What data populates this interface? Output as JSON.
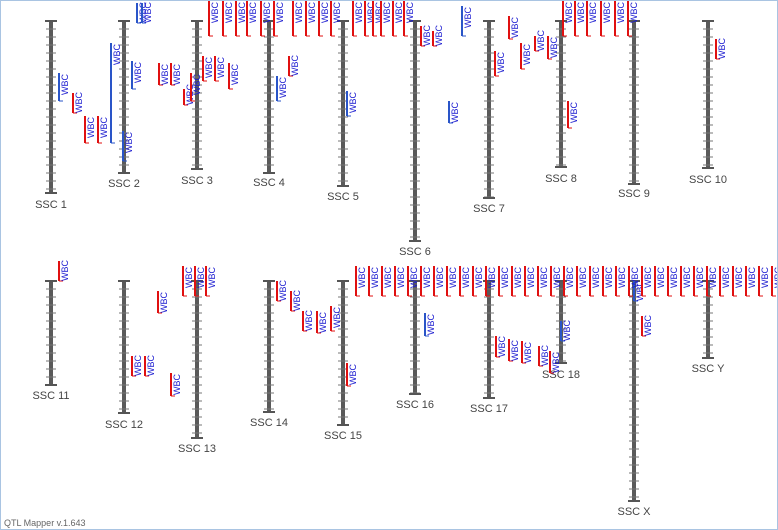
{
  "footer": "QTL Mapper v.1.643",
  "chromosomes": [
    {
      "label": "SSC 1",
      "qtls": [
        "WBC",
        "WBC",
        "WBC",
        "WBC"
      ]
    },
    {
      "label": "SSC 2",
      "qtls": [
        "WBC",
        "WBC",
        "WBC",
        "WBC",
        "WBC"
      ]
    },
    {
      "label": "SSC 3",
      "qtls": [
        "WBC",
        "WBC",
        "WBC",
        "WBC",
        "WBC",
        "WBC",
        "WBC",
        "WBC",
        "WBC",
        "WBC"
      ]
    },
    {
      "label": "SSC 4",
      "qtls": [
        "WBC",
        "WBC",
        "WBC",
        "WBC",
        "WBC",
        "WBC"
      ]
    },
    {
      "label": "SSC 5",
      "qtls": [
        "WBC",
        "WBC",
        "WBC",
        "WBC",
        "WBC",
        "WBC",
        "WBC",
        "WBC",
        "WBC",
        "WBC"
      ]
    },
    {
      "label": "SSC 6",
      "qtls": [
        "WBC",
        "WBC",
        "WBC",
        "WBC"
      ]
    },
    {
      "label": "SSC 7",
      "qtls": [
        "WBC",
        "WBC",
        "WBC",
        "WBC",
        "WBC",
        "WBC"
      ]
    },
    {
      "label": "SSC 8",
      "qtls": [
        "WBC",
        "WBC",
        "WBC",
        "WBC",
        "WBC",
        "WBC"
      ]
    },
    {
      "label": "SSC 9",
      "qtls": []
    },
    {
      "label": "SSC 10",
      "qtls": [
        "WBC"
      ]
    },
    {
      "label": "SSC 11",
      "qtls": [
        "WBC"
      ]
    },
    {
      "label": "SSC 12",
      "qtls": [
        "WBC",
        "WBC",
        "WBC",
        "WBC"
      ]
    },
    {
      "label": "SSC 13",
      "qtls": [
        "WBC",
        "WBC",
        "WBC"
      ]
    },
    {
      "label": "SSC 14",
      "qtls": [
        "WBC",
        "WBC",
        "WBC",
        "WBC",
        "WBC",
        "WBC"
      ]
    },
    {
      "label": "SSC 15",
      "qtls": [
        "WBC",
        "WBC",
        "WBC",
        "WBC"
      ]
    },
    {
      "label": "SSC 16",
      "qtls": [
        "WBC",
        "WBC",
        "WBC",
        "WBC",
        "WBC",
        "WBC"
      ]
    },
    {
      "label": "SSC 17",
      "qtls": [
        "WBC",
        "WBC",
        "WBC",
        "WBC",
        "WBC",
        "WBC",
        "WBC",
        "WBC",
        "WBC",
        "WBC"
      ]
    },
    {
      "label": "SSC 18",
      "qtls": [
        "WBC",
        "WBC",
        "WBC",
        "WBC",
        "WBC",
        "WBC",
        "WBC",
        "WBC"
      ]
    },
    {
      "label": "SSC X",
      "qtls": [
        "WBC",
        "WBC",
        "WBC",
        "WBC",
        "WBC",
        "WBC",
        "WBC",
        "WBC"
      ]
    },
    {
      "label": "SSC Y",
      "qtls": [
        "WBC",
        "WBC",
        "WBC",
        "WBC",
        "WBC",
        "WBC"
      ]
    }
  ]
}
